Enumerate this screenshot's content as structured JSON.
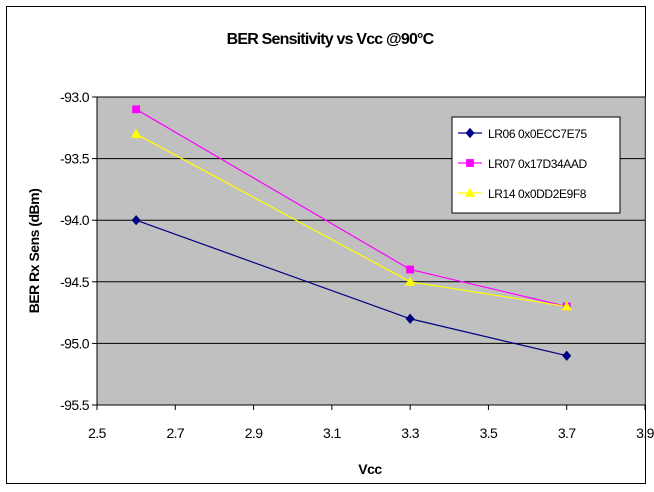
{
  "chart_data": {
    "type": "line",
    "title": "BER Sensitivity vs Vcc @90°C",
    "xlabel": "Vcc",
    "ylabel": "BER Rx Sens (dBm)",
    "xlim": [
      2.5,
      3.9
    ],
    "ylim": [
      -95.5,
      -93.0
    ],
    "x_ticks": [
      "2.5",
      "2.7",
      "2.9",
      "3.1",
      "3.3",
      "3.5",
      "3.7",
      "3.9"
    ],
    "y_ticks": [
      "-93.0",
      "-93.5",
      "-94.0",
      "-94.5",
      "-95.0",
      "-95.5"
    ],
    "grid": "horizontal",
    "legend_position": "top-right",
    "plot_background": "#C0C0C0",
    "series": [
      {
        "name": "LR06 0x0ECC7E75",
        "color": "#000080",
        "marker": "diamond",
        "x": [
          2.6,
          3.3,
          3.7
        ],
        "y": [
          -94.0,
          -94.8,
          -95.1
        ]
      },
      {
        "name": "LR07 0x17D34AAD",
        "color": "#FF00FF",
        "marker": "square",
        "x": [
          2.6,
          3.3,
          3.7
        ],
        "y": [
          -93.1,
          -94.4,
          -94.7
        ]
      },
      {
        "name": "LR14 0x0DD2E9F8",
        "color": "#FFFF00",
        "marker": "triangle",
        "x": [
          2.6,
          3.3,
          3.7
        ],
        "y": [
          -93.3,
          -94.5,
          -94.7
        ]
      }
    ]
  }
}
